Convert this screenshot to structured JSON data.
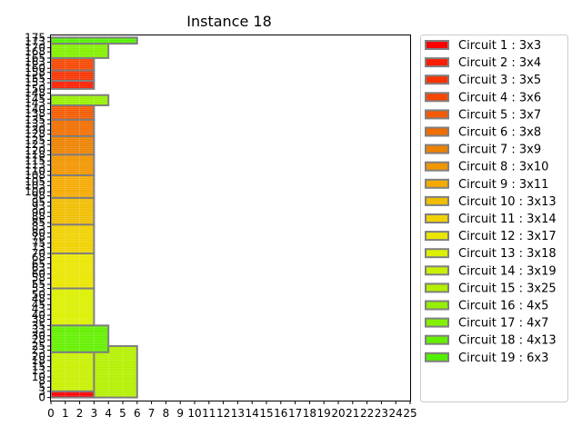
{
  "chart_data": {
    "type": "bar",
    "title": "Instance 18",
    "xlabel": "",
    "ylabel": "",
    "xlim": [
      0,
      25
    ],
    "ylim": [
      -1.5,
      176
    ],
    "grid": true,
    "legend_position": "right",
    "x_ticks": [
      0,
      1,
      2,
      3,
      4,
      5,
      6,
      7,
      8,
      9,
      10,
      11,
      12,
      13,
      14,
      15,
      16,
      17,
      18,
      19,
      20,
      21,
      22,
      23,
      24,
      25
    ],
    "y_ticks": [
      0,
      3,
      5,
      8,
      10,
      13,
      15,
      18,
      20,
      23,
      25,
      28,
      30,
      33,
      35,
      38,
      40,
      43,
      45,
      48,
      50,
      53,
      55,
      58,
      60,
      63,
      65,
      68,
      70,
      73,
      75,
      78,
      80,
      83,
      85,
      88,
      90,
      93,
      95,
      98,
      100,
      103,
      105,
      108,
      110,
      113,
      115,
      118,
      120,
      123,
      125,
      128,
      130,
      133,
      135,
      138,
      140,
      143,
      145,
      148,
      150,
      153,
      155,
      158,
      160,
      163,
      165,
      168,
      170,
      173,
      175
    ],
    "series": [
      {
        "name": "Circuit 1 : 3x3",
        "color": "#ff0000",
        "rect": {
          "x": 0,
          "y": 0,
          "w": 3,
          "h": 3
        }
      },
      {
        "name": "Circuit 2 : 3x4",
        "color": "#fc1e00",
        "rect": {
          "x": 0,
          "y": 150,
          "w": 3,
          "h": 4
        }
      },
      {
        "name": "Circuit 3 : 3x5",
        "color": "#f93200",
        "rect": {
          "x": 0,
          "y": 154,
          "w": 3,
          "h": 5
        }
      },
      {
        "name": "Circuit 4 : 3x6",
        "color": "#f64600",
        "rect": {
          "x": 0,
          "y": 159,
          "w": 3,
          "h": 6
        }
      },
      {
        "name": "Circuit 5 : 3x7",
        "color": "#f35a00",
        "rect": {
          "x": 0,
          "y": 135,
          "w": 3,
          "h": 7
        }
      },
      {
        "name": "Circuit 6 : 3x8",
        "color": "#f06e00",
        "rect": {
          "x": 0,
          "y": 127,
          "w": 3,
          "h": 8
        }
      },
      {
        "name": "Circuit 7 : 3x9",
        "color": "#ed8200",
        "rect": {
          "x": 0,
          "y": 118,
          "w": 3,
          "h": 9
        }
      },
      {
        "name": "Circuit 8 : 3x10",
        "color": "#f29600",
        "rect": {
          "x": 0,
          "y": 108,
          "w": 3,
          "h": 10
        }
      },
      {
        "name": "Circuit 9 : 3x11",
        "color": "#f5aa00",
        "rect": {
          "x": 0,
          "y": 97,
          "w": 3,
          "h": 11
        }
      },
      {
        "name": "Circuit 10 : 3x13",
        "color": "#f0be00",
        "rect": {
          "x": 0,
          "y": 84,
          "w": 3,
          "h": 13
        }
      },
      {
        "name": "Circuit 11 : 3x14",
        "color": "#f0d200",
        "rect": {
          "x": 0,
          "y": 70,
          "w": 3,
          "h": 14
        }
      },
      {
        "name": "Circuit 12 : 3x17",
        "color": "#ebe600",
        "rect": {
          "x": 0,
          "y": 53,
          "w": 3,
          "h": 17
        }
      },
      {
        "name": "Circuit 13 : 3x18",
        "color": "#dcf000",
        "rect": {
          "x": 0,
          "y": 35,
          "w": 3,
          "h": 18
        }
      },
      {
        "name": "Circuit 14 : 3x19",
        "color": "#c8f000",
        "rect": {
          "x": 0,
          "y": 3,
          "w": 3,
          "h": 19
        }
      },
      {
        "name": "Circuit 15 : 3x25",
        "color": "#b4f000",
        "rect": {
          "x": 3,
          "y": 0,
          "w": 3,
          "h": 25
        }
      },
      {
        "name": "Circuit 16 : 4x5",
        "color": "#96f000",
        "rect": {
          "x": 0,
          "y": 142,
          "w": 4,
          "h": 5
        }
      },
      {
        "name": "Circuit 17 : 4x7",
        "color": "#82f000",
        "rect": {
          "x": 0,
          "y": 165,
          "w": 4,
          "h": 7
        }
      },
      {
        "name": "Circuit 18 : 4x13",
        "color": "#64f000",
        "rect": {
          "x": 0,
          "y": 22,
          "w": 4,
          "h": 13
        }
      },
      {
        "name": "Circuit 19 : 6x3",
        "color": "#50f000",
        "rect": {
          "x": 0,
          "y": 172,
          "w": 6,
          "h": 3
        }
      }
    ]
  }
}
